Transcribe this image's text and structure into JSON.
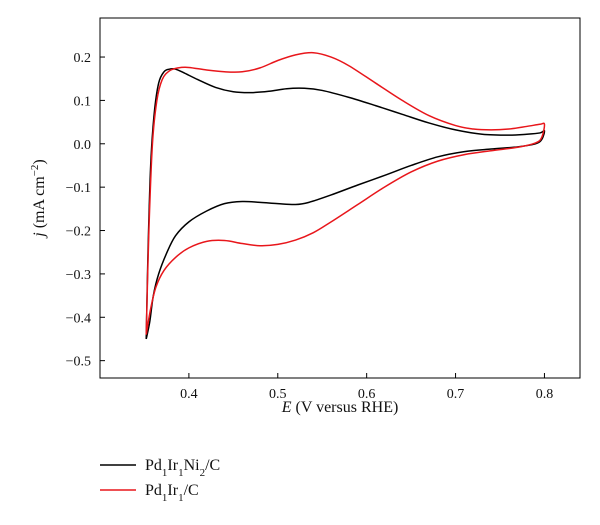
{
  "chart_data": {
    "type": "line",
    "xlabel": {
      "symbol": "E",
      "rest": " (V versus RHE)"
    },
    "ylabel": {
      "symbol": "j",
      "rest": " (mA cm",
      "sup": "−2",
      "close": ")"
    },
    "xlim": [
      0.3,
      0.84
    ],
    "ylim": [
      -0.54,
      0.29
    ],
    "x_ticks": [
      0.4,
      0.5,
      0.6,
      0.7,
      0.8
    ],
    "x_tick_labels": [
      "0.4",
      "0.5",
      "0.6",
      "0.7",
      "0.8"
    ],
    "y_ticks": [
      -0.5,
      -0.4,
      -0.3,
      -0.2,
      -0.1,
      0.0,
      0.1,
      0.2
    ],
    "y_tick_labels": [
      "−0.5",
      "−0.4",
      "−0.3",
      "−0.2",
      "−0.1",
      "0.0",
      "0.1",
      "0.2"
    ],
    "grid": false,
    "legend_position": "bottom-left-outside",
    "series": [
      {
        "name": "Pd1Ir1Ni2/C",
        "legend": [
          {
            "t": "Pd"
          },
          {
            "t": "1",
            "sub": true
          },
          {
            "t": "Ir"
          },
          {
            "t": "1",
            "sub": true
          },
          {
            "t": "Ni"
          },
          {
            "t": "2",
            "sub": true
          },
          {
            "t": "/C"
          }
        ],
        "color": "#000000",
        "points": [
          [
            0.352,
            -0.45
          ],
          [
            0.354,
            -0.25
          ],
          [
            0.357,
            -0.05
          ],
          [
            0.361,
            0.07
          ],
          [
            0.366,
            0.14
          ],
          [
            0.372,
            0.166
          ],
          [
            0.378,
            0.172
          ],
          [
            0.385,
            0.172
          ],
          [
            0.395,
            0.163
          ],
          [
            0.41,
            0.148
          ],
          [
            0.43,
            0.13
          ],
          [
            0.45,
            0.12
          ],
          [
            0.47,
            0.118
          ],
          [
            0.49,
            0.121
          ],
          [
            0.51,
            0.127
          ],
          [
            0.53,
            0.128
          ],
          [
            0.55,
            0.123
          ],
          [
            0.58,
            0.107
          ],
          [
            0.61,
            0.088
          ],
          [
            0.64,
            0.068
          ],
          [
            0.67,
            0.048
          ],
          [
            0.7,
            0.032
          ],
          [
            0.73,
            0.022
          ],
          [
            0.76,
            0.02
          ],
          [
            0.78,
            0.022
          ],
          [
            0.795,
            0.025
          ],
          [
            0.8,
            0.03
          ],
          [
            0.797,
            0.01
          ],
          [
            0.79,
            0.0
          ],
          [
            0.77,
            -0.007
          ],
          [
            0.74,
            -0.012
          ],
          [
            0.71,
            -0.018
          ],
          [
            0.68,
            -0.03
          ],
          [
            0.65,
            -0.05
          ],
          [
            0.62,
            -0.073
          ],
          [
            0.59,
            -0.095
          ],
          [
            0.56,
            -0.118
          ],
          [
            0.535,
            -0.135
          ],
          [
            0.52,
            -0.14
          ],
          [
            0.5,
            -0.138
          ],
          [
            0.48,
            -0.135
          ],
          [
            0.46,
            -0.133
          ],
          [
            0.44,
            -0.138
          ],
          [
            0.42,
            -0.155
          ],
          [
            0.4,
            -0.18
          ],
          [
            0.385,
            -0.212
          ],
          [
            0.375,
            -0.252
          ],
          [
            0.366,
            -0.3
          ],
          [
            0.36,
            -0.35
          ],
          [
            0.356,
            -0.41
          ],
          [
            0.352,
            -0.45
          ]
        ]
      },
      {
        "name": "Pd1Ir1/C",
        "legend": [
          {
            "t": "Pd"
          },
          {
            "t": "1",
            "sub": true
          },
          {
            "t": "Ir"
          },
          {
            "t": "1",
            "sub": true
          },
          {
            "t": "/C"
          }
        ],
        "color": "#e8161b",
        "points": [
          [
            0.352,
            -0.44
          ],
          [
            0.355,
            -0.2
          ],
          [
            0.359,
            0.0
          ],
          [
            0.364,
            0.1
          ],
          [
            0.37,
            0.148
          ],
          [
            0.378,
            0.168
          ],
          [
            0.388,
            0.175
          ],
          [
            0.4,
            0.176
          ],
          [
            0.42,
            0.17
          ],
          [
            0.44,
            0.166
          ],
          [
            0.46,
            0.166
          ],
          [
            0.48,
            0.175
          ],
          [
            0.5,
            0.192
          ],
          [
            0.52,
            0.205
          ],
          [
            0.54,
            0.21
          ],
          [
            0.56,
            0.2
          ],
          [
            0.58,
            0.18
          ],
          [
            0.61,
            0.14
          ],
          [
            0.64,
            0.1
          ],
          [
            0.67,
            0.065
          ],
          [
            0.7,
            0.042
          ],
          [
            0.72,
            0.034
          ],
          [
            0.74,
            0.032
          ],
          [
            0.76,
            0.034
          ],
          [
            0.78,
            0.04
          ],
          [
            0.795,
            0.045
          ],
          [
            0.8,
            0.045
          ],
          [
            0.797,
            0.015
          ],
          [
            0.79,
            0.002
          ],
          [
            0.77,
            -0.008
          ],
          [
            0.74,
            -0.016
          ],
          [
            0.71,
            -0.025
          ],
          [
            0.68,
            -0.04
          ],
          [
            0.65,
            -0.065
          ],
          [
            0.62,
            -0.1
          ],
          [
            0.59,
            -0.14
          ],
          [
            0.56,
            -0.18
          ],
          [
            0.54,
            -0.205
          ],
          [
            0.52,
            -0.222
          ],
          [
            0.5,
            -0.232
          ],
          [
            0.48,
            -0.235
          ],
          [
            0.46,
            -0.23
          ],
          [
            0.44,
            -0.223
          ],
          [
            0.42,
            -0.225
          ],
          [
            0.4,
            -0.24
          ],
          [
            0.385,
            -0.262
          ],
          [
            0.372,
            -0.292
          ],
          [
            0.363,
            -0.33
          ],
          [
            0.357,
            -0.38
          ],
          [
            0.352,
            -0.44
          ]
        ]
      }
    ]
  }
}
